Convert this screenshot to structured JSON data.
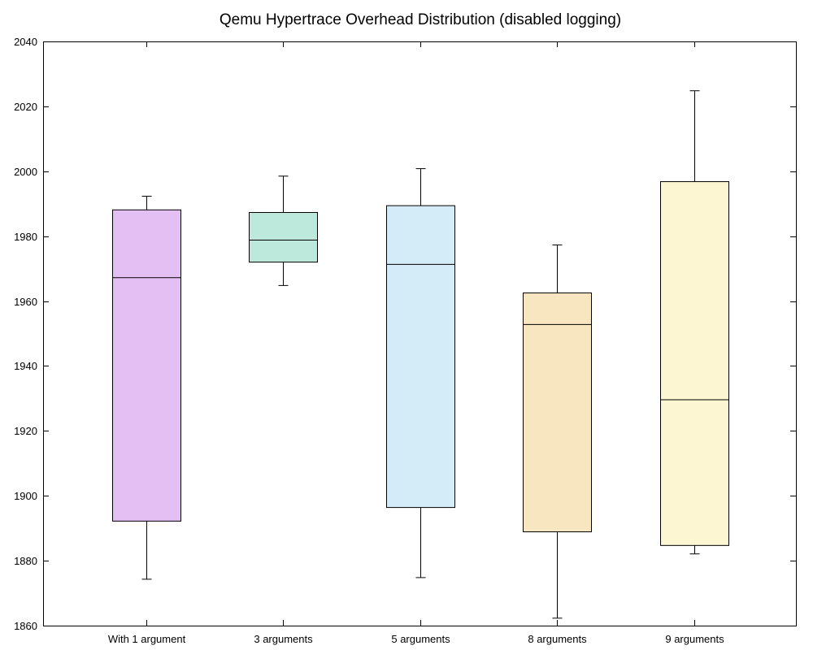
{
  "chart_data": {
    "type": "box",
    "title": "Qemu Hypertrace Overhead Distribution (disabled logging)",
    "xlabel": "",
    "ylabel": "",
    "ylim": [
      1860,
      2040
    ],
    "yticks": [
      1860,
      1880,
      1900,
      1920,
      1940,
      1960,
      1980,
      2000,
      2020,
      2040
    ],
    "grid": false,
    "legend": "none",
    "categories": [
      "With 1 argument",
      "3 arguments",
      "5 arguments",
      "8 arguments",
      "9 arguments"
    ],
    "boxes": [
      {
        "category": "With 1 argument",
        "whisker_low": 1874.3,
        "q1": 1892.2,
        "median": 1967.2,
        "q3": 1988.1,
        "whisker_high": 1992.3,
        "color": "#e4bff3"
      },
      {
        "category": "3 arguments",
        "whisker_low": 1964.8,
        "q1": 1972.0,
        "median": 1978.8,
        "q3": 1987.3,
        "whisker_high": 1998.5,
        "color": "#bde8dc"
      },
      {
        "category": "5 arguments",
        "whisker_low": 1874.8,
        "q1": 1896.4,
        "median": 1971.3,
        "q3": 1989.4,
        "whisker_high": 2000.8,
        "color": "#d4ebf8"
      },
      {
        "category": "8 arguments",
        "whisker_low": 1862.3,
        "q1": 1888.9,
        "median": 1952.8,
        "q3": 1962.5,
        "whisker_high": 1977.3,
        "color": "#f8e6c1"
      },
      {
        "category": "9 arguments",
        "whisker_low": 1882.1,
        "q1": 1884.7,
        "median": 1929.6,
        "q3": 1996.8,
        "whisker_high": 2024.8,
        "color": "#fcf7d2"
      }
    ]
  }
}
